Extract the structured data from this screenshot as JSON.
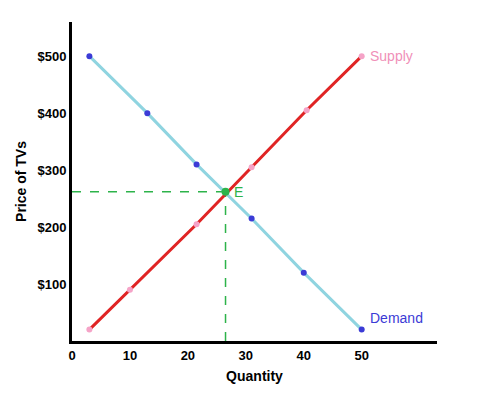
{
  "chart_data": {
    "type": "line",
    "x_label": "Quantity",
    "y_label": "Price of TVs",
    "xlim": [
      0,
      63
    ],
    "ylim": [
      0,
      560
    ],
    "xticks": [
      0,
      10,
      20,
      30,
      40,
      50
    ],
    "yticks": [
      {
        "value": 100,
        "label": "$100"
      },
      {
        "value": 200,
        "label": "$200"
      },
      {
        "value": 300,
        "label": "$300"
      },
      {
        "value": 400,
        "label": "$400"
      },
      {
        "value": 500,
        "label": "$500"
      }
    ],
    "grid": false,
    "series": [
      {
        "name": "Demand",
        "color": "#8fd4e0",
        "marker": "circle",
        "line_style": "solid",
        "x": [
          3,
          13,
          21.5,
          31,
          40,
          50
        ],
        "values": [
          500,
          400,
          310,
          215,
          120,
          20
        ]
      },
      {
        "name": "Supply",
        "color": "#e02424",
        "marker": "circle",
        "line_style": "solid",
        "x": [
          3,
          10,
          21.5,
          31,
          40.5,
          50
        ],
        "values": [
          20,
          90,
          205,
          305,
          405,
          500
        ]
      }
    ],
    "equilibrium": {
      "label": "E",
      "x": 26.5,
      "y": 262,
      "color": "#2db34a",
      "line_style": "dashed"
    }
  }
}
